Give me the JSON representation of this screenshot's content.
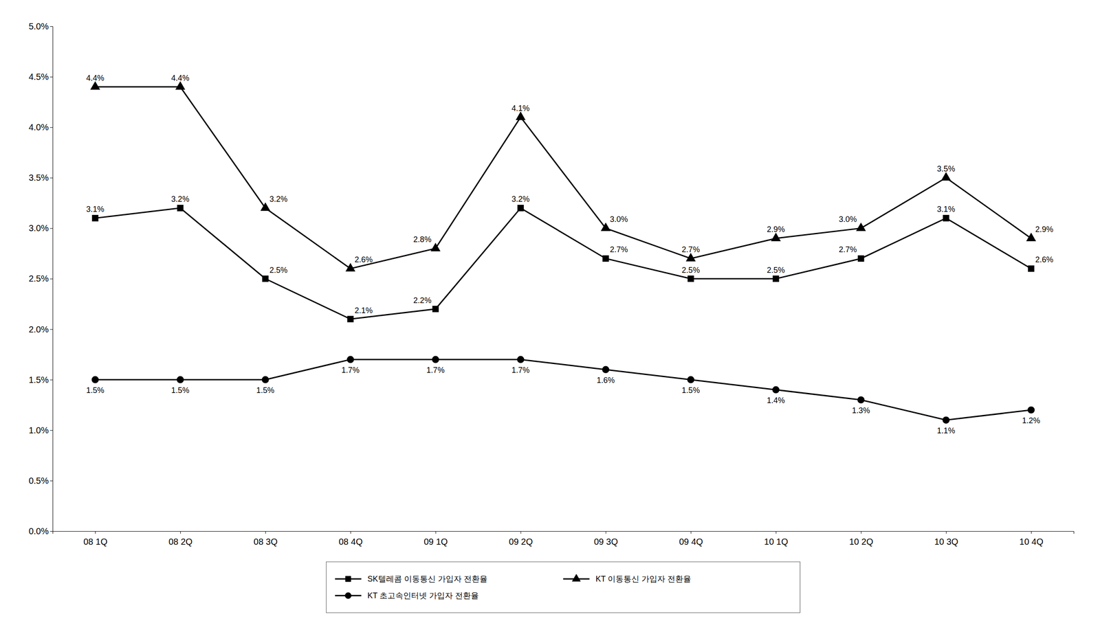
{
  "chart_data": {
    "type": "line",
    "categories": [
      "08 1Q",
      "08 2Q",
      "08 3Q",
      "08 4Q",
      "09 1Q",
      "09 2Q",
      "09 3Q",
      "09 4Q",
      "10 1Q",
      "10 2Q",
      "10 3Q",
      "10 4Q"
    ],
    "series": [
      {
        "name": "SK텔레콤 이동통신 가입자 전환율",
        "color": "#000000",
        "marker": "square",
        "line_style": "solid",
        "values": [
          3.1,
          3.2,
          2.5,
          2.1,
          2.2,
          3.2,
          2.7,
          2.5,
          2.5,
          2.7,
          3.1,
          2.6
        ],
        "value_labels": [
          "3.1%",
          "3.2%",
          "2.5%",
          "2.1%",
          "2.2%",
          "3.2%",
          "2.7%",
          "2.5%",
          "2.5%",
          "2.7%",
          "3.1%",
          "2.6%"
        ]
      },
      {
        "name": "KT 이동통신 가입자 전환율",
        "color": "#000000",
        "marker": "triangle",
        "line_style": "solid",
        "values": [
          4.4,
          4.4,
          3.2,
          2.6,
          2.8,
          4.1,
          3.0,
          2.7,
          2.9,
          3.0,
          3.5,
          2.9
        ],
        "value_labels": [
          "4.4%",
          "4.4%",
          "3.2%",
          "2.6%",
          "2.8%",
          "4.1%",
          "3.0%",
          "2.7%",
          "2.9%",
          "3.0%",
          "3.5%",
          "2.9%"
        ]
      },
      {
        "name": "KT 초고속인터넷 가입자 전환율",
        "color": "#000000",
        "marker": "circle",
        "line_style": "solid",
        "values": [
          1.5,
          1.5,
          1.5,
          1.7,
          1.7,
          1.7,
          1.6,
          1.5,
          1.4,
          1.3,
          1.1,
          1.2
        ],
        "value_labels": [
          "1.5%",
          "1.5%",
          "1.5%",
          "1.7%",
          "1.7%",
          "1.7%",
          "1.6%",
          "1.5%",
          "1.4%",
          "1.3%",
          "1.1%",
          "1.2%"
        ]
      }
    ],
    "ylim": [
      0.0,
      5.0
    ],
    "yticks": [
      {
        "value": 0.0,
        "label": "0.0%"
      },
      {
        "value": 0.5,
        "label": "0.5%"
      },
      {
        "value": 1.0,
        "label": "1.0%"
      },
      {
        "value": 1.5,
        "label": "1.5%"
      },
      {
        "value": 2.0,
        "label": "2.0%"
      },
      {
        "value": 2.5,
        "label": "2.5%"
      },
      {
        "value": 3.0,
        "label": "3.0%"
      },
      {
        "value": 3.5,
        "label": "3.5%"
      },
      {
        "value": 4.0,
        "label": "4.0%"
      },
      {
        "value": 4.5,
        "label": "4.5%"
      },
      {
        "value": 5.0,
        "label": "5.0%"
      }
    ],
    "grid": false,
    "legend": "bottom",
    "data_labels": true
  }
}
